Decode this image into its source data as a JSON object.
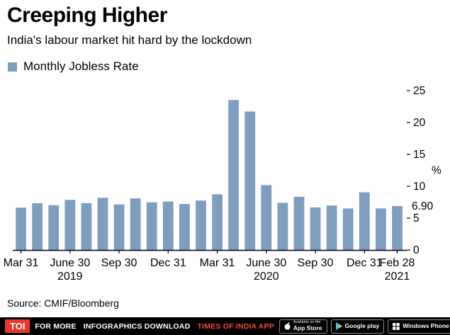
{
  "header": {
    "title": "Creeping Higher",
    "subtitle": "India's labour market hit hard by the lockdown"
  },
  "legend": {
    "label": "Monthly Jobless Rate"
  },
  "chart_data": {
    "type": "bar",
    "title": "Creeping Higher",
    "subtitle": "India's labour market hit hard by the lockdown",
    "legend": "Monthly Jobless Rate",
    "legend_position": "top-left",
    "grid": false,
    "y_axis_side": "right",
    "ylabel": "%",
    "ylim": [
      0,
      25
    ],
    "yticks": [
      0,
      5,
      10,
      15,
      20,
      25
    ],
    "bar_color": "#7f9dbf",
    "categories": [
      "Mar 2019",
      "Apr 2019",
      "May 2019",
      "Jun 2019",
      "Jul 2019",
      "Aug 2019",
      "Sep 2019",
      "Oct 2019",
      "Nov 2019",
      "Dec 2019",
      "Jan 2020",
      "Feb 2020",
      "Mar 2020",
      "Apr 2020",
      "May 2020",
      "Jun 2020",
      "Jul 2020",
      "Aug 2020",
      "Sep 2020",
      "Oct 2020",
      "Nov 2020",
      "Dec 2020",
      "Jan 2021",
      "Feb 2021"
    ],
    "values": [
      6.65,
      7.34,
      7.03,
      7.87,
      7.34,
      8.19,
      7.16,
      8.1,
      7.48,
      7.6,
      7.22,
      7.76,
      8.75,
      23.52,
      21.73,
      10.18,
      7.4,
      8.35,
      6.68,
      6.98,
      6.51,
      9.06,
      6.52,
      6.9
    ],
    "x_ticks": [
      {
        "index": 0,
        "label": "Mar 31"
      },
      {
        "index": 3,
        "label": "June 30",
        "year": "2019"
      },
      {
        "index": 6,
        "label": "Sep 30"
      },
      {
        "index": 9,
        "label": "Dec 31"
      },
      {
        "index": 12,
        "label": "Mar 31"
      },
      {
        "index": 15,
        "label": "June 30",
        "year": "2020"
      },
      {
        "index": 18,
        "label": "Sep 30"
      },
      {
        "index": 21,
        "label": "Dec 31"
      },
      {
        "index": 23,
        "label": "Feb 28",
        "year": "2021"
      }
    ],
    "last_value_label": "6.90"
  },
  "source": {
    "text": "Source: CMIF/Bloomberg"
  },
  "footer": {
    "logo": "TOI",
    "text_for_more": "FOR MORE",
    "text_download": "INFOGRAPHICS DOWNLOAD",
    "text_app": "TIMES OF INDIA APP",
    "colors": {
      "accent_red": "#f2473f",
      "logo_red": "#e8372c",
      "bar_bg": "#000000"
    },
    "badges": [
      {
        "line1": "Available on the",
        "line2": "App Store"
      },
      {
        "line1": "",
        "line2": "Google play"
      },
      {
        "line1": "",
        "line2": "Windows Phone"
      }
    ]
  }
}
